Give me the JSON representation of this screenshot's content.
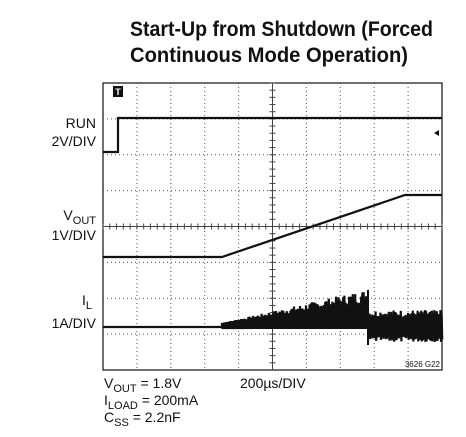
{
  "title": {
    "line1": "Start-Up from Shutdown (Forced",
    "line2": "Continuous Mode Operation)"
  },
  "channels": [
    {
      "name": "RUN",
      "scale": "2V/DIV"
    },
    {
      "name": {
        "main": "V",
        "sub": "OUT"
      },
      "scale": "1V/DIV"
    },
    {
      "name": {
        "main": "I",
        "sub": "L"
      },
      "scale": "1A/DIV"
    }
  ],
  "trigger": "T",
  "timebase": "200µs/DIV",
  "figure_id": "3626 G22",
  "conditions": [
    {
      "main": "V",
      "sub": "OUT",
      "rest": " = 1.8V"
    },
    {
      "main": "I",
      "sub": "LOAD",
      "rest": " = 200mA"
    },
    {
      "main": "C",
      "sub": "SS",
      "rest": " = 2.2nF"
    }
  ]
}
